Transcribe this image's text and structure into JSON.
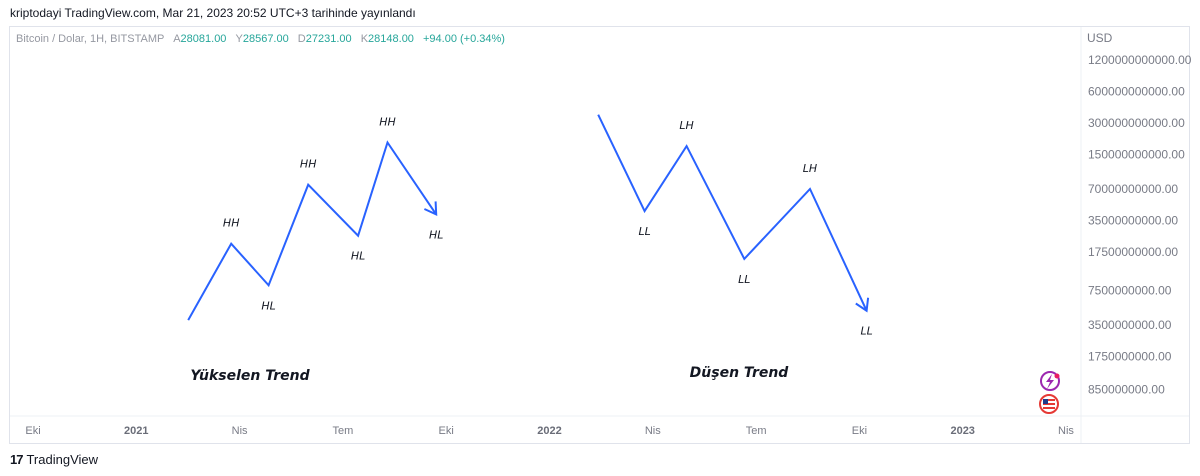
{
  "header": {
    "credit": "kriptodayi TradingView.com, Mar 21, 2023 20:52 UTC+3 tarihinde yayınlandı"
  },
  "legend": {
    "symbol": "Bitcoin / Dolar, 1H, BITSTAMP",
    "open_key": "A",
    "open": "28081.00",
    "high_key": "Y",
    "high": "28567.00",
    "low_key": "D",
    "low": "27231.00",
    "close_key": "K",
    "close": "28148.00",
    "change": "+94.00 (+0.34%)"
  },
  "footer": {
    "logo_mark": "17",
    "logo_text": "TradingView"
  },
  "chart_data": {
    "type": "line",
    "y_unit": "USD",
    "y_scale": "log",
    "y_ticks": [
      "1200000000000.00",
      "600000000000.00",
      "300000000000.00",
      "150000000000.00",
      "70000000000.00",
      "35000000000.00",
      "17500000000.00",
      "7500000000.00",
      "3500000000.00",
      "1750000000.00",
      "850000000.00"
    ],
    "x_ticks": [
      {
        "label": "Eki",
        "year": false
      },
      {
        "label": "2021",
        "year": true
      },
      {
        "label": "Nis",
        "year": false
      },
      {
        "label": "Tem",
        "year": false
      },
      {
        "label": "Eki",
        "year": false
      },
      {
        "label": "2022",
        "year": true
      },
      {
        "label": "Nis",
        "year": false
      },
      {
        "label": "Tem",
        "year": false
      },
      {
        "label": "Eki",
        "year": false
      },
      {
        "label": "2023",
        "year": true
      },
      {
        "label": "Nis",
        "year": false
      }
    ],
    "series": [
      {
        "points": [
          {
            "date": "2021-02-15",
            "value": 3900000000
          },
          {
            "date": "2021-03-25",
            "value": 21000000000
          },
          {
            "date": "2021-04-27",
            "value": 8400000000
          },
          {
            "date": "2021-06-01",
            "value": 77000000000
          },
          {
            "date": "2021-07-15",
            "value": 25000000000
          },
          {
            "date": "2021-08-10",
            "value": 195000000000
          },
          {
            "date": "2021-09-22",
            "value": 40000000000
          }
        ],
        "labels": [
          {
            "index": 1,
            "text": "HH",
            "pos": "above"
          },
          {
            "index": 2,
            "text": "HL",
            "pos": "below"
          },
          {
            "index": 3,
            "text": "HH",
            "pos": "above"
          },
          {
            "index": 4,
            "text": "HL",
            "pos": "below"
          },
          {
            "index": 5,
            "text": "HH",
            "pos": "above"
          },
          {
            "index": 6,
            "text": "HL",
            "pos": "below"
          }
        ],
        "annotation": "Yükselen Trend"
      },
      {
        "points": [
          {
            "date": "2022-02-12",
            "value": 360000000000
          },
          {
            "date": "2022-03-25",
            "value": 43000000000
          },
          {
            "date": "2022-05-01",
            "value": 180000000000
          },
          {
            "date": "2022-06-21",
            "value": 15000000000
          },
          {
            "date": "2022-08-18",
            "value": 70000000000
          },
          {
            "date": "2022-10-07",
            "value": 4800000000
          }
        ],
        "labels": [
          {
            "index": 1,
            "text": "LL",
            "pos": "below"
          },
          {
            "index": 2,
            "text": "LH",
            "pos": "above"
          },
          {
            "index": 3,
            "text": "LL",
            "pos": "below"
          },
          {
            "index": 4,
            "text": "LH",
            "pos": "above"
          },
          {
            "index": 5,
            "text": "LL",
            "pos": "below"
          }
        ],
        "annotation": "Düşen Trend"
      }
    ]
  }
}
